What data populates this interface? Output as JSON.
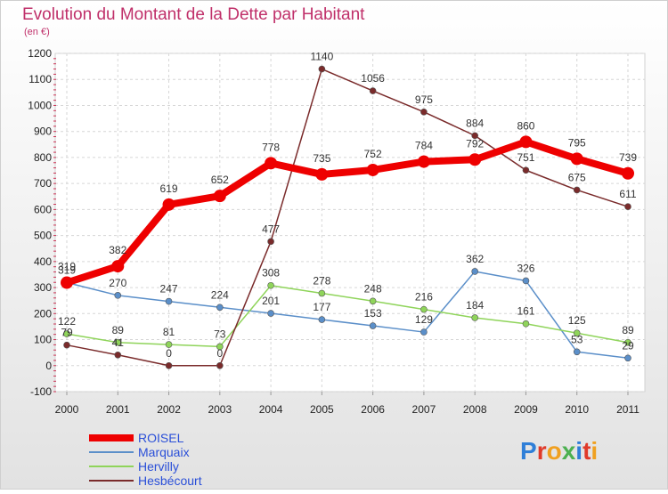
{
  "chart_data": {
    "type": "line",
    "title": "Evolution du Montant de la Dette par Habitant",
    "subtitle": "(en €)",
    "categories": [
      "2000",
      "2001",
      "2002",
      "2003",
      "2004",
      "2005",
      "2006",
      "2007",
      "2008",
      "2009",
      "2010",
      "2011"
    ],
    "ylim": [
      -100,
      1200
    ],
    "yticks": [
      -100,
      0,
      100,
      200,
      300,
      400,
      500,
      600,
      700,
      800,
      900,
      1000,
      1100,
      1200
    ],
    "grid": true,
    "legend_position": "bottom-left",
    "series": [
      {
        "name": "ROISEL",
        "color": "#ee0000",
        "bold": true,
        "values": [
          319,
          382,
          619,
          652,
          778,
          735,
          752,
          784,
          792,
          860,
          795,
          739
        ]
      },
      {
        "name": "Marquaix",
        "color": "#5b8fc9",
        "values": [
          319,
          270,
          247,
          224,
          201,
          177,
          153,
          129,
          362,
          326,
          53,
          29
        ]
      },
      {
        "name": "Hervilly",
        "color": "#8fd45a",
        "values": [
          122,
          89,
          81,
          73,
          308,
          278,
          248,
          216,
          184,
          161,
          125,
          89
        ]
      },
      {
        "name": "Hesbécourt",
        "color": "#7a2b2b",
        "values": [
          79,
          41,
          0,
          0,
          477,
          1140,
          1056,
          975,
          884,
          751,
          675,
          611
        ]
      }
    ]
  },
  "logo": {
    "text": "Proxiti"
  }
}
